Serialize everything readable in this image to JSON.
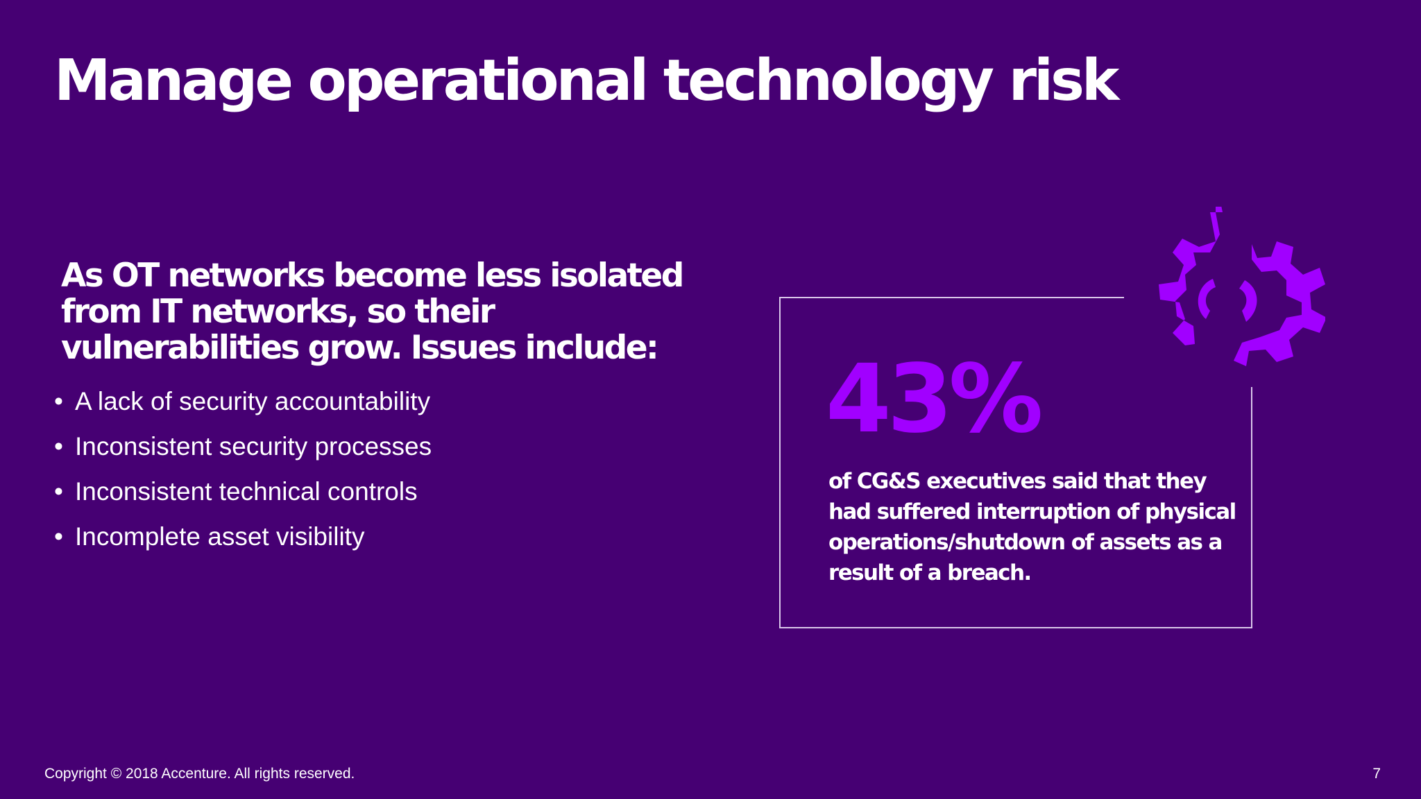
{
  "slide": {
    "title": "Manage operational technology risk",
    "intro": "As OT networks become less isolated from IT networks, so their vulnerabilities grow. Issues include:",
    "bullets": [
      {
        "marker": "•",
        "text": "A lack of security accountability"
      },
      {
        "marker": "•",
        "text": "Inconsistent security processes"
      },
      {
        "marker": "•",
        "text": "Inconsistent technical controls"
      },
      {
        "marker": "•",
        "text": "Incomplete asset visibility"
      }
    ]
  },
  "stat": {
    "value": "43%",
    "description": "of CG&S executives said that they had suffered interruption of physical operations/shutdown of assets as a result of a breach.",
    "icon": "broken-gear-icon"
  },
  "footer": {
    "copyright": "Copyright © 2018 Accenture. All rights reserved.",
    "page_number": "7"
  },
  "colors": {
    "background": "#460073",
    "accent": "#a100ff",
    "text": "#ffffff",
    "box_border": "#d9c7ea"
  }
}
